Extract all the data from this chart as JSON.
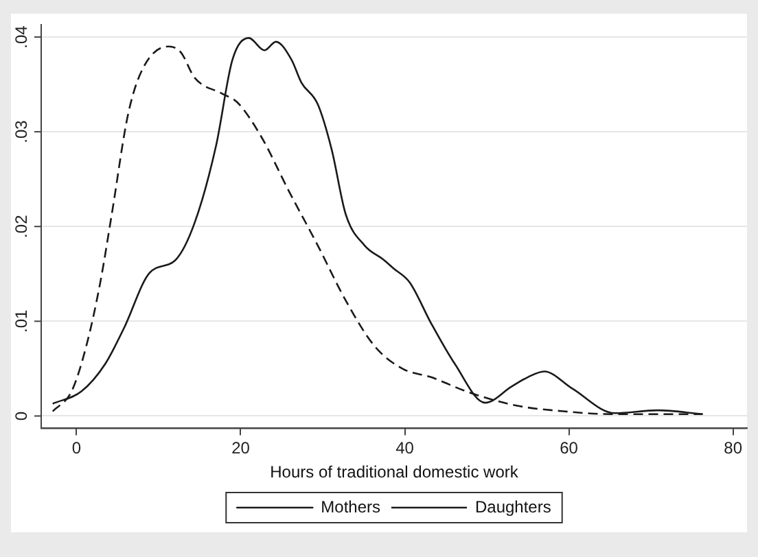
{
  "chart_data": {
    "type": "line",
    "xlabel": "Hours of traditional domestic work",
    "xlim": [
      -4.3,
      81.7
    ],
    "xticks": [
      0,
      20,
      40,
      60,
      80
    ],
    "ylim": [
      -0.0013,
      0.0413
    ],
    "yticks": [
      {
        "value": 0,
        "label": "0"
      },
      {
        "value": 0.01,
        "label": ".01"
      },
      {
        "value": 0.02,
        "label": ".02"
      },
      {
        "value": 0.03,
        "label": ".03"
      },
      {
        "value": 0.04,
        "label": ".04"
      }
    ],
    "grid": "y",
    "legend": "bottom",
    "marker": "none",
    "series": [
      {
        "name": "Mothers",
        "color": "#1a1a1a",
        "line_style": "solid",
        "x": [
          -2.9,
          0.6,
          3.5,
          5.8,
          8.9,
          12.1,
          14.4,
          17,
          19,
          21,
          22.9,
          24.3,
          26.2,
          27.4,
          29.4,
          31.1,
          32.8,
          35.1,
          37.4,
          38.6,
          40.6,
          43.2,
          46.1,
          49.8,
          53,
          55,
          57,
          60.4,
          65.6,
          70.8,
          76.3
        ],
        "values": [
          0.0013,
          0.0026,
          0.0055,
          0.0093,
          0.0151,
          0.0165,
          0.0204,
          0.0285,
          0.0376,
          0.0399,
          0.0386,
          0.0395,
          0.0376,
          0.0352,
          0.0329,
          0.0281,
          0.0213,
          0.018,
          0.0165,
          0.0156,
          0.0141,
          0.0098,
          0.0055,
          0.0014,
          0.0031,
          0.0041,
          0.0047,
          0.0029,
          0.0003,
          0.0006,
          0.0002
        ]
      },
      {
        "name": "Daughters",
        "color": "#1a1a1a",
        "line_style": "dashed",
        "x": [
          -2.9,
          -0.6,
          1.2,
          2.9,
          4.3,
          6.3,
          8.1,
          11.2,
          12.7,
          14.4,
          17.8,
          19.6,
          22.5,
          25.9,
          29.4,
          32.8,
          36.3,
          39.7,
          43.2,
          47.8,
          53.6,
          59.3,
          65.1,
          70.8,
          76.3
        ],
        "values": [
          0.0005,
          0.0026,
          0.0074,
          0.0141,
          0.0213,
          0.0319,
          0.0367,
          0.039,
          0.0384,
          0.0357,
          0.034,
          0.0331,
          0.0295,
          0.0237,
          0.018,
          0.0122,
          0.0074,
          0.005,
          0.0041,
          0.0025,
          0.0011,
          0.0005,
          0.0002,
          0.0002,
          0.0002
        ]
      }
    ]
  }
}
